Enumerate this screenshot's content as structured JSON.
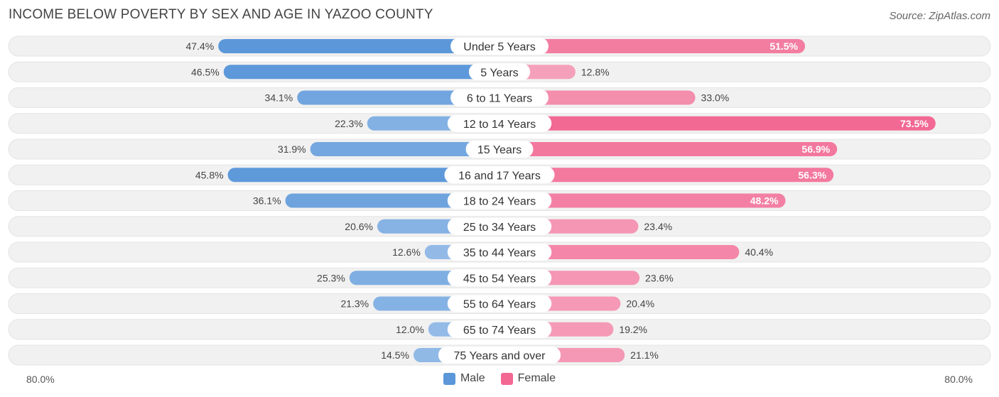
{
  "header": {
    "title": "INCOME BELOW POVERTY BY SEX AND AGE IN YAZOO COUNTY",
    "source": "Source: ZipAtlas.com"
  },
  "axis": {
    "left_label": "80.0%",
    "right_label": "80.0%"
  },
  "legend": {
    "male_label": "Male",
    "female_label": "Female"
  },
  "colors": {
    "male_strong": "#5b97d9",
    "male_light": "#a7c7ec",
    "female_strong": "#f26892",
    "female_light": "#f6abc3",
    "track": "#f1f1f1"
  },
  "chart_data": {
    "type": "bar",
    "title": "INCOME BELOW POVERTY BY SEX AND AGE IN YAZOO COUNTY",
    "orientation": "horizontal-diverging",
    "xlim": [
      -80,
      80
    ],
    "categories": [
      "Under 5 Years",
      "5 Years",
      "6 to 11 Years",
      "12 to 14 Years",
      "15 Years",
      "16 and 17 Years",
      "18 to 24 Years",
      "25 to 34 Years",
      "35 to 44 Years",
      "45 to 54 Years",
      "55 to 64 Years",
      "65 to 74 Years",
      "75 Years and over"
    ],
    "series": [
      {
        "name": "Male",
        "values": [
          47.4,
          46.5,
          34.1,
          22.3,
          31.9,
          45.8,
          36.1,
          20.6,
          12.6,
          25.3,
          21.3,
          12.0,
          14.5
        ],
        "labels": [
          "47.4%",
          "46.5%",
          "34.1%",
          "22.3%",
          "31.9%",
          "45.8%",
          "36.1%",
          "20.6%",
          "12.6%",
          "25.3%",
          "21.3%",
          "12.0%",
          "14.5%"
        ]
      },
      {
        "name": "Female",
        "values": [
          51.5,
          12.8,
          33.0,
          73.5,
          56.9,
          56.3,
          48.2,
          23.4,
          40.4,
          23.6,
          20.4,
          19.2,
          21.1
        ],
        "labels": [
          "51.5%",
          "12.8%",
          "33.0%",
          "73.5%",
          "56.9%",
          "56.3%",
          "48.2%",
          "23.4%",
          "40.4%",
          "23.6%",
          "20.4%",
          "19.2%",
          "21.1%"
        ]
      }
    ]
  }
}
